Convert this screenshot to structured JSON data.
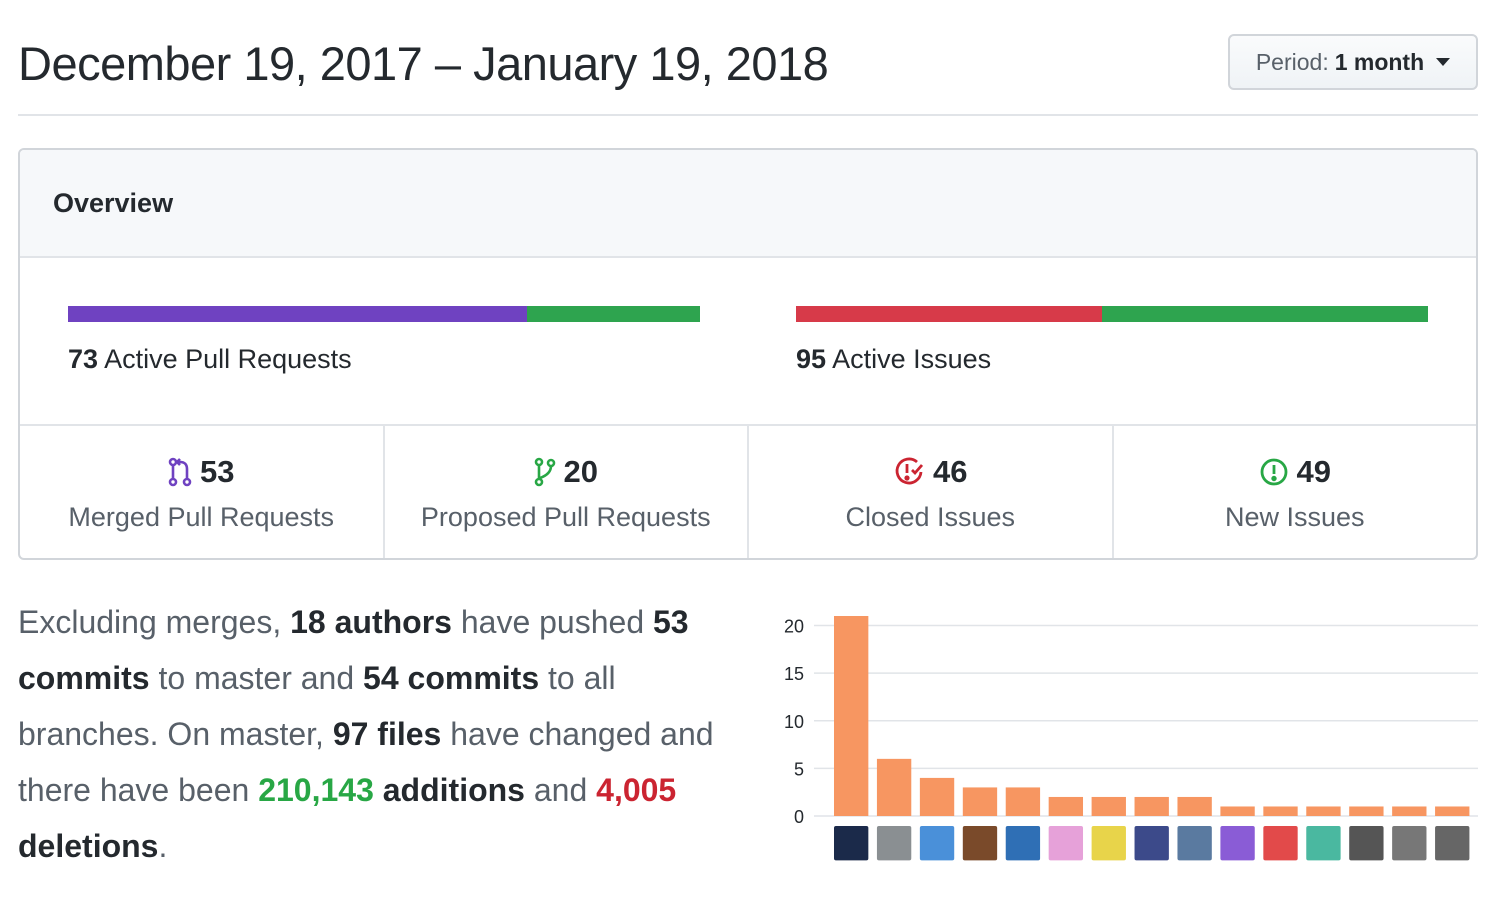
{
  "header": {
    "date_range": "December 19, 2017 – January 19, 2018",
    "period_label": "Period:",
    "period_value": "1 month"
  },
  "overview": {
    "title": "Overview",
    "pull_requests": {
      "count": "73",
      "label": "Active Pull Requests",
      "segments": [
        {
          "name": "merged",
          "value": 53,
          "color": "#6f42c1"
        },
        {
          "name": "proposed",
          "value": 20,
          "color": "#2ea44f"
        }
      ]
    },
    "issues": {
      "count": "95",
      "label": "Active Issues",
      "segments": [
        {
          "name": "closed",
          "value": 46,
          "color": "#d73a49"
        },
        {
          "name": "new",
          "value": 49,
          "color": "#2ea44f"
        }
      ]
    },
    "stats": [
      {
        "icon": "git-merge-icon",
        "value": "53",
        "label": "Merged Pull Requests",
        "color": "#6f42c1"
      },
      {
        "icon": "git-pull-request-icon",
        "value": "20",
        "label": "Proposed Pull Requests",
        "color": "#28a745"
      },
      {
        "icon": "issue-closed-icon",
        "value": "46",
        "label": "Closed Issues",
        "color": "#cb2431"
      },
      {
        "icon": "issue-opened-icon",
        "value": "49",
        "label": "New Issues",
        "color": "#28a745"
      }
    ]
  },
  "summary": {
    "t1": "Excluding merges, ",
    "authors": "18 authors",
    "t2": " have pushed ",
    "master_commits": "53 commits",
    "t3": " to master and ",
    "all_commits": "54 commits",
    "t4": " to all branches. On master, ",
    "files": "97 files",
    "t5": " have changed and there have been ",
    "additions_num": "210,143",
    "additions_word": " additions",
    "t6": " and ",
    "deletions_num": "4,005",
    "deletions_word": " deletions",
    "t7": "."
  },
  "chart_data": {
    "type": "bar",
    "categories": [
      "author-1",
      "author-2",
      "author-3",
      "author-4",
      "author-5",
      "author-6",
      "author-7",
      "author-8",
      "author-9",
      "author-10",
      "author-11",
      "author-12",
      "author-13",
      "author-14",
      "author-15"
    ],
    "values": [
      21,
      6,
      4,
      3,
      3,
      2,
      2,
      2,
      2,
      1,
      1,
      1,
      1,
      1,
      1
    ],
    "ylim": [
      0,
      21
    ],
    "yticks": [
      0,
      5,
      10,
      15,
      20
    ],
    "bar_color": "#f79661",
    "grid": true,
    "avatar_colors": [
      "#1b2a4a",
      "#8a8f92",
      "#4a90d9",
      "#7a4a2a",
      "#2f6fb5",
      "#e6a1d9",
      "#e8d44a",
      "#3c4a8a",
      "#5a7aa0",
      "#8a5cd6",
      "#e24a4a",
      "#4ab8a0",
      "#555555",
      "#777777",
      "#666666"
    ]
  }
}
